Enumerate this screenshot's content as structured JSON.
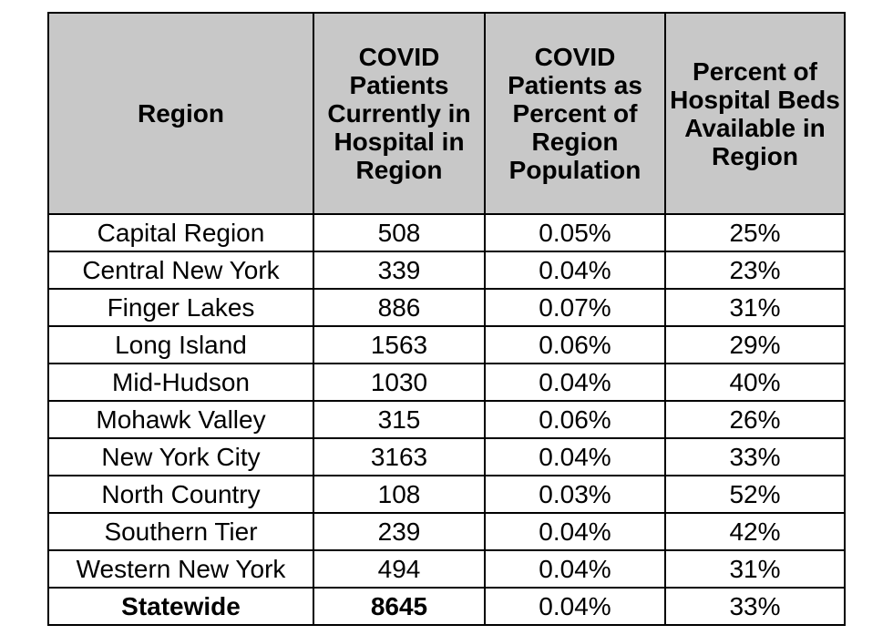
{
  "table": {
    "headers": [
      "Region",
      "COVID Patients Currently in Hospital in Region",
      "COVID Patients as Percent of Region Population",
      "Percent of Hospital Beds Available in Region"
    ],
    "rows": [
      [
        "Capital Region",
        "508",
        "0.05%",
        "25%"
      ],
      [
        "Central New York",
        "339",
        "0.04%",
        "23%"
      ],
      [
        "Finger Lakes",
        "886",
        "0.07%",
        "31%"
      ],
      [
        "Long Island",
        "1563",
        "0.06%",
        "29%"
      ],
      [
        "Mid-Hudson",
        "1030",
        "0.04%",
        "40%"
      ],
      [
        "Mohawk Valley",
        "315",
        "0.06%",
        "26%"
      ],
      [
        "New York City",
        "3163",
        "0.04%",
        "33%"
      ],
      [
        "North Country",
        "108",
        "0.03%",
        "52%"
      ],
      [
        "Southern Tier",
        "239",
        "0.04%",
        "42%"
      ],
      [
        "Western New York",
        "494",
        "0.04%",
        "31%"
      ]
    ],
    "total": [
      "Statewide",
      "8645",
      "0.04%",
      "33%"
    ]
  }
}
